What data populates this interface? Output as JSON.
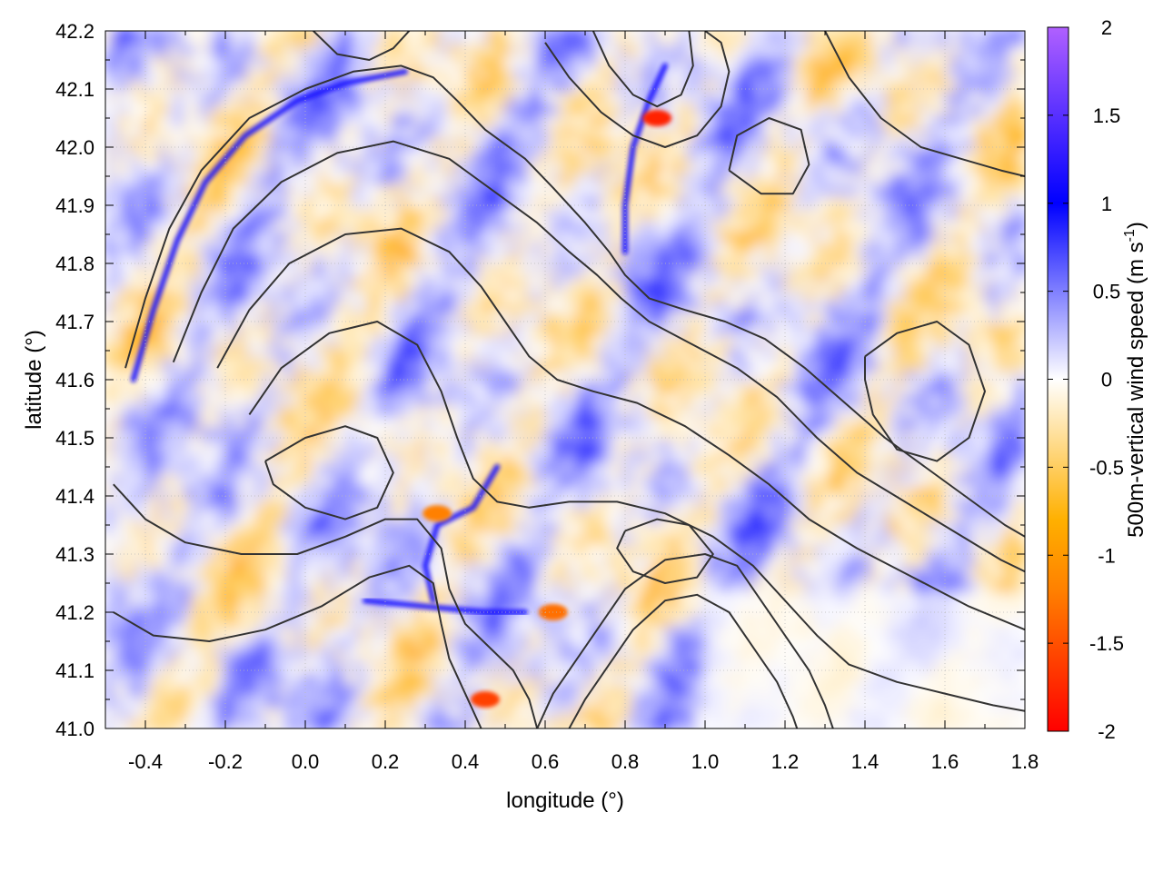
{
  "chart_data": {
    "type": "heatmap",
    "title": "",
    "xlabel": "longitude (°)",
    "ylabel": "latitude (°)",
    "xlim": [
      -0.5,
      1.8
    ],
    "ylim": [
      41.0,
      42.2
    ],
    "x_ticks": [
      -0.4,
      -0.2,
      0.0,
      0.2,
      0.4,
      0.6,
      0.8,
      1.0,
      1.2,
      1.4,
      1.6,
      1.8
    ],
    "x_tick_labels": [
      "-0.4",
      "-0.2",
      "0.0",
      "0.2",
      "0.4",
      "0.6",
      "0.8",
      "1.0",
      "1.2",
      "1.4",
      "1.6",
      "1.8"
    ],
    "y_ticks": [
      41.0,
      41.1,
      41.2,
      41.3,
      41.4,
      41.5,
      41.6,
      41.7,
      41.8,
      41.9,
      42.0,
      42.1,
      42.2
    ],
    "y_tick_labels": [
      "41.0",
      "41.1",
      "41.2",
      "41.3",
      "41.4",
      "41.5",
      "41.6",
      "41.7",
      "41.8",
      "41.9",
      "42.0",
      "42.1",
      "42.2"
    ],
    "grid": true,
    "colorbar": {
      "label_main": "500m-vertical wind speed (m s",
      "label_sup": "-1",
      "label_close": ")",
      "range": [
        -2,
        2
      ],
      "ticks": [
        -2,
        -1.5,
        -1,
        -0.5,
        0,
        0.5,
        1,
        1.5,
        2
      ],
      "tick_labels": [
        "-2",
        "-1.5",
        "-1",
        "-0.5",
        "0",
        "0.5",
        "1",
        "1.5",
        "2"
      ],
      "colors": [
        "#ff0000",
        "#ff8000",
        "#ffb000",
        "#ffffff",
        "#0000ff",
        "#b060ff"
      ],
      "stops": [
        -2,
        -1.2,
        -0.8,
        0,
        1,
        2
      ]
    },
    "contour_color": "#333333",
    "features": [
      {
        "name": "arc",
        "kind": "positive-band",
        "path": [
          [
            -0.43,
            41.6
          ],
          [
            -0.38,
            41.72
          ],
          [
            -0.32,
            41.84
          ],
          [
            -0.25,
            41.94
          ],
          [
            -0.15,
            42.02
          ],
          [
            -0.02,
            42.08
          ],
          [
            0.1,
            42.11
          ],
          [
            0.25,
            42.13
          ]
        ]
      },
      {
        "name": "north-jet",
        "kind": "positive-band",
        "path": [
          [
            0.8,
            41.82
          ],
          [
            0.8,
            41.9
          ],
          [
            0.82,
            42.0
          ],
          [
            0.86,
            42.08
          ],
          [
            0.9,
            42.14
          ]
        ]
      },
      {
        "name": "central-jet",
        "kind": "positive-band",
        "path": [
          [
            0.48,
            41.45
          ],
          [
            0.42,
            41.38
          ],
          [
            0.33,
            41.35
          ],
          [
            0.3,
            41.28
          ],
          [
            0.32,
            41.22
          ]
        ]
      },
      {
        "name": "south-band",
        "kind": "positive-band",
        "path": [
          [
            0.15,
            41.22
          ],
          [
            0.3,
            41.21
          ],
          [
            0.45,
            41.2
          ],
          [
            0.55,
            41.2
          ]
        ]
      },
      {
        "name": "hotspot-ne",
        "kind": "negative-spot",
        "center": [
          0.88,
          42.05
        ],
        "value": -1.8
      },
      {
        "name": "hotspot-s",
        "kind": "negative-spot",
        "center": [
          0.45,
          41.05
        ],
        "value": -1.6
      },
      {
        "name": "hotspot-sc",
        "kind": "negative-spot",
        "center": [
          0.62,
          41.2
        ],
        "value": -1.3
      },
      {
        "name": "hotspot-c",
        "kind": "negative-spot",
        "center": [
          0.33,
          41.37
        ],
        "value": -1.2
      }
    ],
    "contours": [
      [
        [
          -0.45,
          41.62
        ],
        [
          -0.4,
          41.74
        ],
        [
          -0.34,
          41.86
        ],
        [
          -0.26,
          41.96
        ],
        [
          -0.14,
          42.05
        ],
        [
          0.0,
          42.1
        ],
        [
          0.12,
          42.13
        ],
        [
          0.24,
          42.14
        ],
        [
          0.32,
          42.12
        ],
        [
          0.38,
          42.08
        ],
        [
          0.45,
          42.03
        ],
        [
          0.55,
          41.98
        ],
        [
          0.62,
          41.93
        ],
        [
          0.7,
          41.87
        ],
        [
          0.76,
          41.82
        ],
        [
          0.8,
          41.78
        ],
        [
          0.86,
          41.74
        ],
        [
          0.95,
          41.72
        ],
        [
          1.05,
          41.7
        ],
        [
          1.15,
          41.67
        ],
        [
          1.25,
          41.62
        ],
        [
          1.35,
          41.56
        ],
        [
          1.45,
          41.5
        ],
        [
          1.55,
          41.45
        ],
        [
          1.65,
          41.4
        ],
        [
          1.75,
          41.35
        ],
        [
          1.8,
          41.33
        ]
      ],
      [
        [
          -0.33,
          41.63
        ],
        [
          -0.26,
          41.75
        ],
        [
          -0.18,
          41.86
        ],
        [
          -0.06,
          41.94
        ],
        [
          0.08,
          41.99
        ],
        [
          0.22,
          42.01
        ],
        [
          0.36,
          41.98
        ],
        [
          0.48,
          41.92
        ],
        [
          0.58,
          41.87
        ],
        [
          0.66,
          41.82
        ],
        [
          0.73,
          41.78
        ],
        [
          0.79,
          41.74
        ],
        [
          0.86,
          41.7
        ],
        [
          0.97,
          41.66
        ],
        [
          1.08,
          41.62
        ],
        [
          1.18,
          41.57
        ],
        [
          1.28,
          41.5
        ],
        [
          1.38,
          41.44
        ],
        [
          1.5,
          41.39
        ],
        [
          1.62,
          41.34
        ],
        [
          1.74,
          41.29
        ],
        [
          1.8,
          41.27
        ]
      ],
      [
        [
          -0.22,
          41.62
        ],
        [
          -0.14,
          41.72
        ],
        [
          -0.04,
          41.8
        ],
        [
          0.1,
          41.85
        ],
        [
          0.24,
          41.86
        ],
        [
          0.36,
          41.82
        ],
        [
          0.44,
          41.76
        ],
        [
          0.5,
          41.7
        ],
        [
          0.56,
          41.64
        ],
        [
          0.63,
          41.6
        ],
        [
          0.72,
          41.58
        ],
        [
          0.83,
          41.56
        ],
        [
          0.95,
          41.52
        ],
        [
          1.06,
          41.47
        ],
        [
          1.16,
          41.42
        ],
        [
          1.26,
          41.36
        ],
        [
          1.38,
          41.31
        ],
        [
          1.52,
          41.26
        ],
        [
          1.66,
          41.21
        ],
        [
          1.8,
          41.17
        ]
      ],
      [
        [
          -0.14,
          41.54
        ],
        [
          -0.06,
          41.62
        ],
        [
          0.06,
          41.68
        ],
        [
          0.18,
          41.7
        ],
        [
          0.28,
          41.66
        ],
        [
          0.34,
          41.58
        ],
        [
          0.38,
          41.5
        ],
        [
          0.42,
          41.43
        ],
        [
          0.48,
          41.39
        ],
        [
          0.56,
          41.38
        ],
        [
          0.66,
          41.39
        ],
        [
          0.78,
          41.39
        ],
        [
          0.9,
          41.37
        ],
        [
          1.02,
          41.33
        ],
        [
          1.12,
          41.28
        ],
        [
          1.2,
          41.22
        ],
        [
          1.28,
          41.16
        ],
        [
          1.36,
          41.11
        ],
        [
          1.48,
          41.08
        ],
        [
          1.6,
          41.06
        ],
        [
          1.72,
          41.04
        ],
        [
          1.8,
          41.03
        ]
      ],
      [
        [
          -0.48,
          41.42
        ],
        [
          -0.4,
          41.36
        ],
        [
          -0.3,
          41.32
        ],
        [
          -0.16,
          41.3
        ],
        [
          -0.02,
          41.3
        ],
        [
          0.1,
          41.33
        ],
        [
          0.2,
          41.36
        ],
        [
          0.28,
          41.36
        ],
        [
          0.34,
          41.31
        ],
        [
          0.36,
          41.24
        ],
        [
          0.4,
          41.18
        ],
        [
          0.46,
          41.14
        ],
        [
          0.52,
          41.1
        ],
        [
          0.56,
          41.05
        ],
        [
          0.58,
          41.0
        ]
      ],
      [
        [
          -0.48,
          41.2
        ],
        [
          -0.38,
          41.16
        ],
        [
          -0.24,
          41.15
        ],
        [
          -0.1,
          41.17
        ],
        [
          0.04,
          41.21
        ],
        [
          0.16,
          41.26
        ],
        [
          0.26,
          41.28
        ],
        [
          0.32,
          41.25
        ],
        [
          0.34,
          41.18
        ],
        [
          0.36,
          41.12
        ],
        [
          0.4,
          41.06
        ],
        [
          0.44,
          41.0
        ]
      ],
      [
        [
          0.58,
          41.0
        ],
        [
          0.62,
          41.06
        ],
        [
          0.68,
          41.12
        ],
        [
          0.74,
          41.18
        ],
        [
          0.8,
          41.24
        ],
        [
          0.9,
          41.29
        ],
        [
          1.0,
          41.3
        ],
        [
          1.08,
          41.28
        ],
        [
          1.14,
          41.22
        ],
        [
          1.2,
          41.16
        ],
        [
          1.26,
          41.1
        ],
        [
          1.3,
          41.04
        ],
        [
          1.32,
          41.0
        ]
      ],
      [
        [
          0.66,
          41.0
        ],
        [
          0.7,
          41.05
        ],
        [
          0.76,
          41.11
        ],
        [
          0.82,
          41.17
        ],
        [
          0.9,
          41.22
        ],
        [
          0.98,
          41.23
        ],
        [
          1.06,
          41.2
        ],
        [
          1.12,
          41.14
        ],
        [
          1.18,
          41.08
        ],
        [
          1.22,
          41.02
        ],
        [
          1.23,
          41.0
        ]
      ],
      [
        [
          -0.1,
          41.46
        ],
        [
          0.0,
          41.5
        ],
        [
          0.1,
          41.52
        ],
        [
          0.18,
          41.5
        ],
        [
          0.22,
          41.44
        ],
        [
          0.18,
          41.38
        ],
        [
          0.1,
          41.36
        ],
        [
          0.0,
          41.38
        ],
        [
          -0.08,
          41.42
        ],
        [
          -0.1,
          41.46
        ]
      ],
      [
        [
          0.8,
          41.34
        ],
        [
          0.88,
          41.36
        ],
        [
          0.96,
          41.35
        ],
        [
          1.02,
          41.3
        ],
        [
          0.98,
          41.26
        ],
        [
          0.9,
          41.25
        ],
        [
          0.82,
          41.27
        ],
        [
          0.78,
          41.31
        ],
        [
          0.8,
          41.34
        ]
      ],
      [
        [
          0.6,
          42.18
        ],
        [
          0.66,
          42.12
        ],
        [
          0.74,
          42.06
        ],
        [
          0.82,
          42.02
        ],
        [
          0.9,
          42.0
        ],
        [
          0.98,
          42.02
        ],
        [
          1.04,
          42.07
        ],
        [
          1.06,
          42.13
        ],
        [
          1.04,
          42.18
        ],
        [
          1.0,
          42.2
        ]
      ],
      [
        [
          0.72,
          42.2
        ],
        [
          0.76,
          42.14
        ],
        [
          0.82,
          42.09
        ],
        [
          0.88,
          42.07
        ],
        [
          0.94,
          42.09
        ],
        [
          0.97,
          42.14
        ],
        [
          0.96,
          42.2
        ]
      ],
      [
        [
          1.3,
          42.2
        ],
        [
          1.36,
          42.12
        ],
        [
          1.44,
          42.05
        ],
        [
          1.54,
          42.0
        ],
        [
          1.64,
          41.98
        ],
        [
          1.74,
          41.96
        ],
        [
          1.8,
          41.95
        ]
      ],
      [
        [
          1.4,
          41.64
        ],
        [
          1.48,
          41.68
        ],
        [
          1.58,
          41.7
        ],
        [
          1.66,
          41.66
        ],
        [
          1.7,
          41.58
        ],
        [
          1.66,
          41.5
        ],
        [
          1.58,
          41.46
        ],
        [
          1.48,
          41.48
        ],
        [
          1.42,
          41.54
        ],
        [
          1.4,
          41.6
        ],
        [
          1.4,
          41.64
        ]
      ],
      [
        [
          0.02,
          42.2
        ],
        [
          0.08,
          42.16
        ],
        [
          0.16,
          42.15
        ],
        [
          0.22,
          42.17
        ],
        [
          0.26,
          42.2
        ]
      ],
      [
        [
          1.06,
          41.96
        ],
        [
          1.14,
          41.92
        ],
        [
          1.22,
          41.92
        ],
        [
          1.26,
          41.97
        ],
        [
          1.24,
          42.03
        ],
        [
          1.16,
          42.05
        ],
        [
          1.08,
          42.02
        ],
        [
          1.06,
          41.96
        ]
      ]
    ]
  }
}
